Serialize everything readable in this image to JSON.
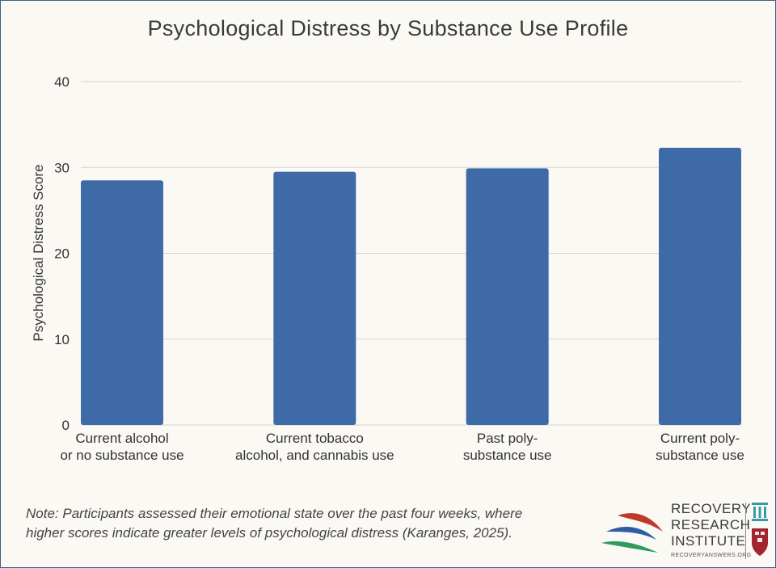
{
  "chart_data": {
    "type": "bar",
    "title": "Psychological Distress by Substance Use Profile",
    "xlabel": "",
    "ylabel": "Psychological Distress Score",
    "ylim": [
      0,
      40
    ],
    "yticks": [
      0,
      10,
      20,
      30,
      40
    ],
    "grid": true,
    "categories": [
      [
        "Current alcohol",
        "or no substance use"
      ],
      [
        "Current tobacco",
        "alcohol, and cannabis use"
      ],
      [
        "Past poly-",
        "substance use"
      ],
      [
        "Current poly-",
        "substance use"
      ]
    ],
    "values": [
      28.5,
      29.5,
      29.9,
      32.3
    ],
    "bar_color": "#3f6aa8"
  },
  "note": "Note: Participants assessed their emotional state over the past four weeks, where higher scores indicate greater levels of psychological distress (Karanges, 2025).",
  "logo": {
    "line1": "RECOVERY",
    "line2": "RESEARCH",
    "line3": "INSTITUTE",
    "url": "RECOVERYANSWERS.ORG"
  },
  "colors": {
    "grid": "#d6d3cc",
    "axis_text": "#333333",
    "logo_red": "#c0392b",
    "logo_blue": "#2e5da8",
    "logo_green": "#2e9b5c",
    "logo_teal": "#3a9aa5"
  }
}
